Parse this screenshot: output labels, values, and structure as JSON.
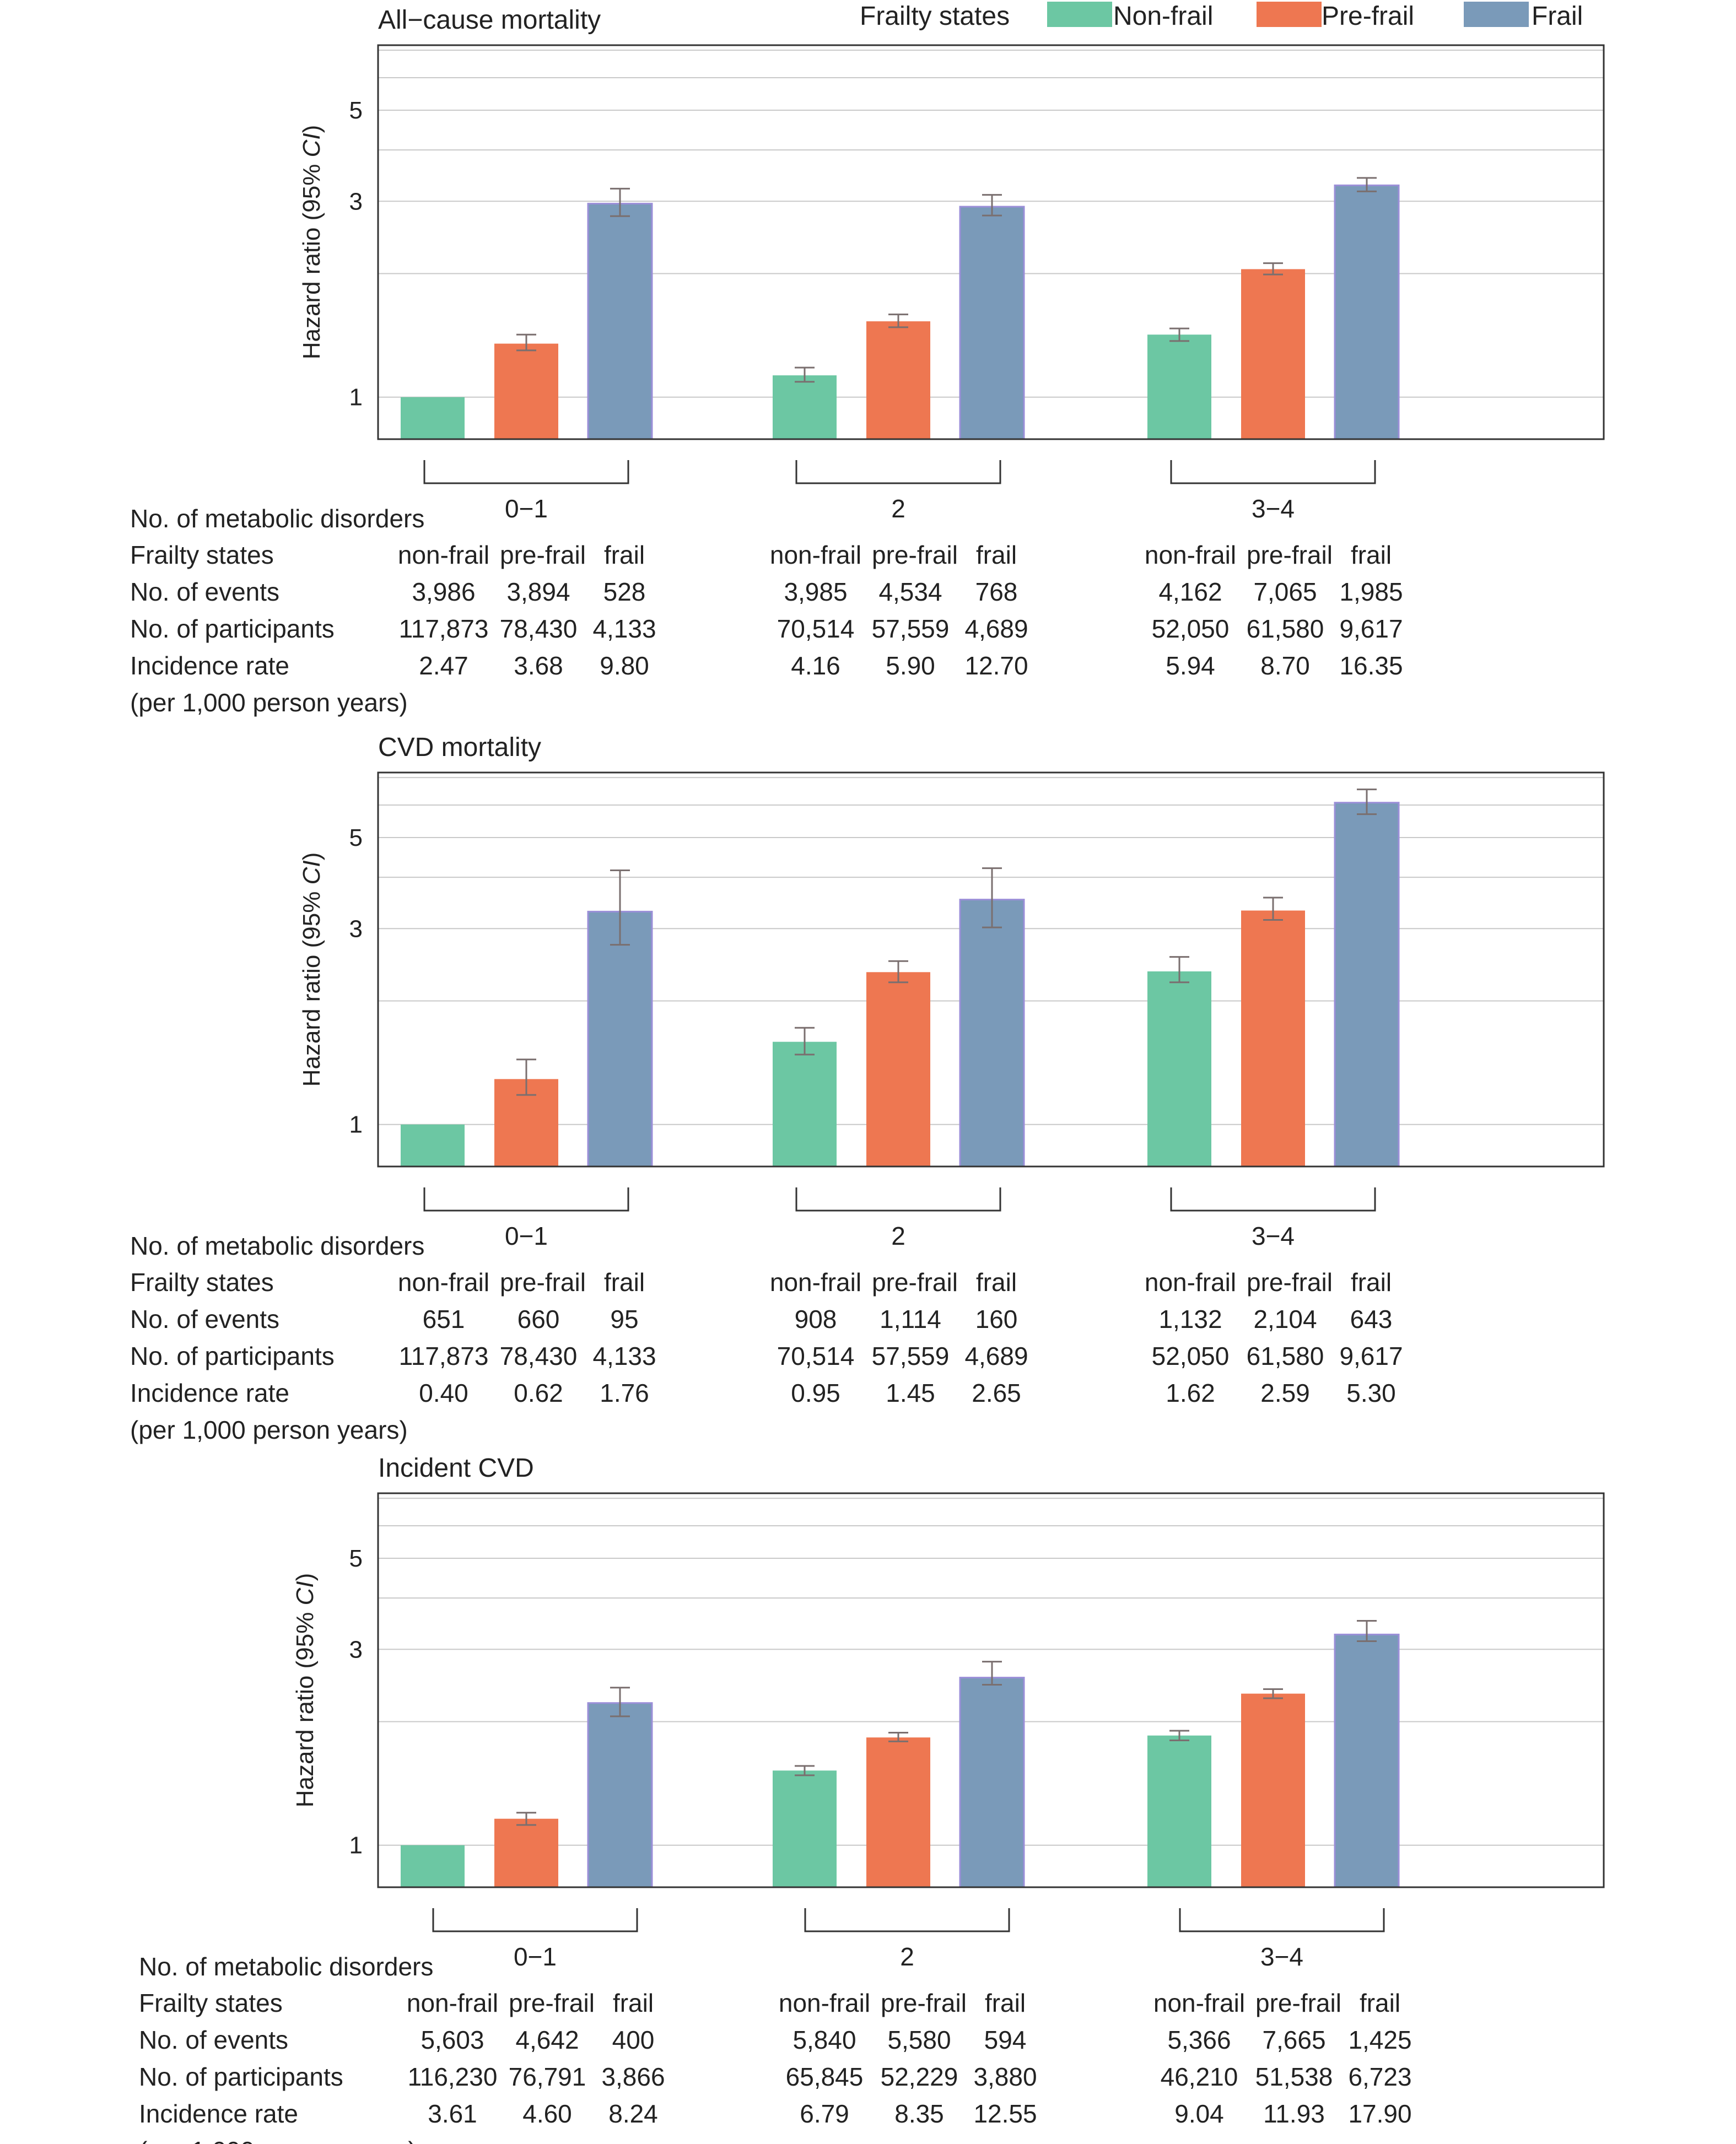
{
  "legend": {
    "title": "Frailty states",
    "entries": [
      {
        "label": "Non-frail",
        "color": "#6cc7a3"
      },
      {
        "label": "Pre-frail",
        "color": "#ee7751"
      },
      {
        "label": "Frail",
        "color": "#7a9ab9"
      }
    ]
  },
  "table_labels": {
    "metabolic": "No. of metabolic disorders",
    "frailty": "Frailty states",
    "events": "No. of events",
    "participants": "No. of participants",
    "incidence": "Incidence rate",
    "incidence_unit": "(per 1,000 person years)"
  },
  "chart_data": [
    {
      "type": "bar",
      "title": "All−cause mortality",
      "ylabel": "Hazard ratio (95% CI)",
      "yscale": "log",
      "ylim": [
        0.79,
        7.2
      ],
      "yticks": [
        1,
        3,
        5
      ],
      "gridlines": [
        1,
        2,
        3,
        4,
        5,
        6,
        7
      ],
      "groups": [
        {
          "label": "0−1",
          "states": [
            "non-frail",
            "pre-frail",
            "frail"
          ],
          "hr": [
            1.0,
            1.35,
            2.96
          ],
          "ci_low": [
            1.0,
            1.3,
            2.76
          ],
          "ci_high": [
            1.0,
            1.42,
            3.22
          ],
          "events": [
            "3,986",
            "3,894",
            "528"
          ],
          "participants": [
            "117,873",
            "78,430",
            "4,133"
          ],
          "incidence": [
            "2.47",
            "3.68",
            "9.80"
          ]
        },
        {
          "label": "2",
          "states": [
            "non-frail",
            "pre-frail",
            "frail"
          ],
          "hr": [
            1.13,
            1.53,
            2.91
          ],
          "ci_low": [
            1.09,
            1.48,
            2.77
          ],
          "ci_high": [
            1.18,
            1.59,
            3.11
          ],
          "events": [
            "3,985",
            "4,534",
            "768"
          ],
          "participants": [
            "70,514",
            "57,559",
            "4,689"
          ],
          "incidence": [
            "4.16",
            "5.90",
            "12.70"
          ]
        },
        {
          "label": "3−4",
          "states": [
            "non-frail",
            "pre-frail",
            "frail"
          ],
          "hr": [
            1.42,
            2.05,
            3.28
          ],
          "ci_low": [
            1.37,
            1.99,
            3.17
          ],
          "ci_high": [
            1.47,
            2.12,
            3.42
          ],
          "events": [
            "4,162",
            "7,065",
            "1,985"
          ],
          "participants": [
            "52,050",
            "61,580",
            "9,617"
          ],
          "incidence": [
            "5.94",
            "8.70",
            "16.35"
          ]
        }
      ]
    },
    {
      "type": "bar",
      "title": "CVD mortality",
      "ylabel": "Hazard ratio (95% CI)",
      "yscale": "log",
      "ylim": [
        0.79,
        7.2
      ],
      "yticks": [
        1,
        3,
        5
      ],
      "gridlines": [
        1,
        2,
        3,
        4,
        5,
        6,
        7
      ],
      "groups": [
        {
          "label": "0−1",
          "states": [
            "non-frail",
            "pre-frail",
            "frail"
          ],
          "hr": [
            1.0,
            1.29,
            3.3
          ],
          "ci_low": [
            1.0,
            1.18,
            2.74
          ],
          "ci_high": [
            1.0,
            1.44,
            4.16
          ],
          "events": [
            "651",
            "660",
            "95"
          ],
          "participants": [
            "117,873",
            "78,430",
            "4,133"
          ],
          "incidence": [
            "0.40",
            "0.62",
            "1.76"
          ]
        },
        {
          "label": "2",
          "states": [
            "non-frail",
            "pre-frail",
            "frail"
          ],
          "hr": [
            1.59,
            2.35,
            3.53
          ],
          "ci_low": [
            1.48,
            2.22,
            3.02
          ],
          "ci_high": [
            1.72,
            2.5,
            4.21
          ],
          "events": [
            "908",
            "1,114",
            "160"
          ],
          "participants": [
            "70,514",
            "57,559",
            "4,689"
          ],
          "incidence": [
            "0.95",
            "1.45",
            "2.65"
          ]
        },
        {
          "label": "3−4",
          "states": [
            "non-frail",
            "pre-frail",
            "frail"
          ],
          "hr": [
            2.36,
            3.32,
            6.08
          ],
          "ci_low": [
            2.22,
            3.15,
            5.7
          ],
          "ci_high": [
            2.56,
            3.57,
            6.55
          ],
          "events": [
            "1,132",
            "2,104",
            "643"
          ],
          "participants": [
            "52,050",
            "61,580",
            "9,617"
          ],
          "incidence": [
            "1.62",
            "2.59",
            "5.30"
          ]
        }
      ]
    },
    {
      "type": "bar",
      "title": "Incident CVD",
      "ylabel": "Hazard ratio (95% CI)",
      "yscale": "log",
      "ylim": [
        0.79,
        7.2
      ],
      "yticks": [
        1,
        3,
        5
      ],
      "gridlines": [
        1,
        2,
        3,
        4,
        5,
        6,
        7
      ],
      "groups": [
        {
          "label": "0−1",
          "states": [
            "non-frail",
            "pre-frail",
            "frail"
          ],
          "hr": [
            1.0,
            1.16,
            2.22
          ],
          "ci_low": [
            1.0,
            1.12,
            2.06
          ],
          "ci_high": [
            1.0,
            1.2,
            2.42
          ],
          "events": [
            "5,603",
            "4,642",
            "400"
          ],
          "participants": [
            "116,230",
            "76,791",
            "3,866"
          ],
          "incidence": [
            "3.61",
            "4.60",
            "8.24"
          ]
        },
        {
          "label": "2",
          "states": [
            "non-frail",
            "pre-frail",
            "frail"
          ],
          "hr": [
            1.52,
            1.83,
            2.56
          ],
          "ci_low": [
            1.48,
            1.79,
            2.46
          ],
          "ci_high": [
            1.56,
            1.88,
            2.8
          ],
          "events": [
            "5,840",
            "5,580",
            "594"
          ],
          "participants": [
            "65,845",
            "52,229",
            "3,880"
          ],
          "incidence": [
            "6.79",
            "8.35",
            "12.55"
          ]
        },
        {
          "label": "3−4",
          "states": [
            "non-frail",
            "pre-frail",
            "frail"
          ],
          "hr": [
            1.85,
            2.34,
            3.26
          ],
          "ci_low": [
            1.8,
            2.28,
            3.14
          ],
          "ci_high": [
            1.9,
            2.4,
            3.52
          ],
          "events": [
            "5,366",
            "7,665",
            "1,425"
          ],
          "participants": [
            "46,210",
            "51,538",
            "6,723"
          ],
          "incidence": [
            "9.04",
            "11.93",
            "17.90"
          ]
        }
      ]
    }
  ]
}
